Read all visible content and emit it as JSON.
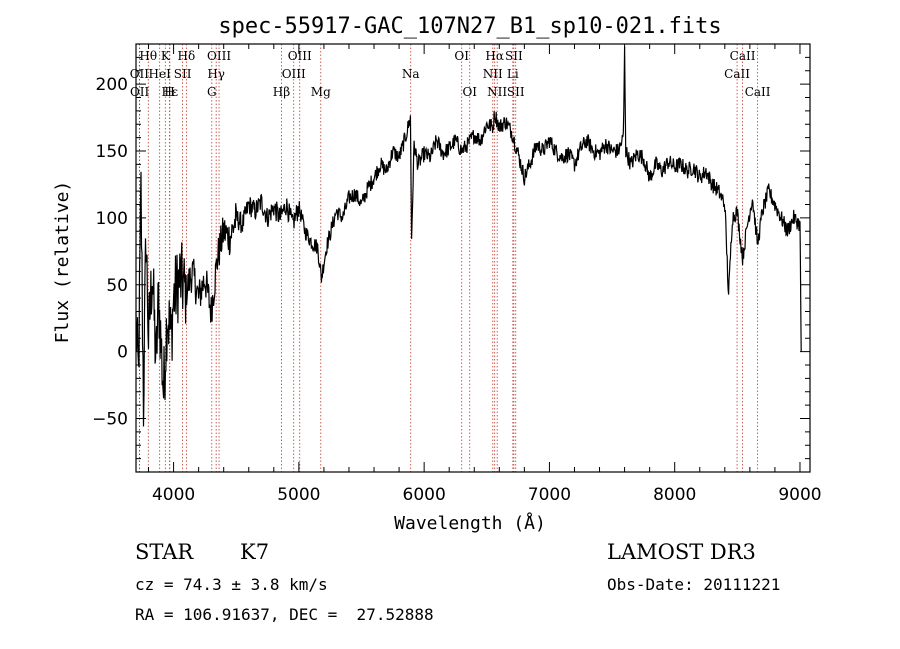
{
  "chart_data": {
    "type": "line",
    "title": "spec-55917-GAC_107N27_B1_sp10-021.fits",
    "xlabel": "Wavelength (Å)",
    "ylabel": "Flux (relative)",
    "xlim": [
      3700,
      9080
    ],
    "ylim": [
      -90,
      230
    ],
    "xticks": [
      4000,
      5000,
      6000,
      7000,
      8000,
      9000
    ],
    "yticks": [
      -50,
      0,
      50,
      100,
      150,
      200
    ],
    "spectrum_anchors": [
      [
        3700,
        20
      ],
      [
        3720,
        -20
      ],
      [
        3740,
        120
      ],
      [
        3760,
        -40
      ],
      [
        3780,
        90
      ],
      [
        3800,
        10
      ],
      [
        3830,
        60
      ],
      [
        3860,
        -10
      ],
      [
        3880,
        40
      ],
      [
        3920,
        -30
      ],
      [
        3950,
        30
      ],
      [
        3980,
        10
      ],
      [
        4000,
        40
      ],
      [
        4050,
        55
      ],
      [
        4100,
        45
      ],
      [
        4150,
        60
      ],
      [
        4200,
        40
      ],
      [
        4250,
        55
      ],
      [
        4300,
        30
      ],
      [
        4350,
        70
      ],
      [
        4400,
        90
      ],
      [
        4450,
        85
      ],
      [
        4500,
        100
      ],
      [
        4550,
        95
      ],
      [
        4600,
        110
      ],
      [
        4650,
        105
      ],
      [
        4700,
        112
      ],
      [
        4750,
        100
      ],
      [
        4800,
        108
      ],
      [
        4850,
        100
      ],
      [
        4900,
        110
      ],
      [
        4950,
        95
      ],
      [
        5000,
        108
      ],
      [
        5050,
        90
      ],
      [
        5100,
        82
      ],
      [
        5150,
        78
      ],
      [
        5180,
        55
      ],
      [
        5220,
        78
      ],
      [
        5300,
        105
      ],
      [
        5350,
        100
      ],
      [
        5400,
        115
      ],
      [
        5450,
        118
      ],
      [
        5500,
        110
      ],
      [
        5550,
        122
      ],
      [
        5600,
        130
      ],
      [
        5650,
        140
      ],
      [
        5700,
        135
      ],
      [
        5750,
        150
      ],
      [
        5800,
        145
      ],
      [
        5850,
        160
      ],
      [
        5890,
        175
      ],
      [
        5900,
        85
      ],
      [
        5920,
        155
      ],
      [
        5950,
        140
      ],
      [
        6000,
        148
      ],
      [
        6050,
        145
      ],
      [
        6100,
        158
      ],
      [
        6150,
        148
      ],
      [
        6200,
        152
      ],
      [
        6250,
        158
      ],
      [
        6300,
        150
      ],
      [
        6350,
        155
      ],
      [
        6400,
        162
      ],
      [
        6450,
        158
      ],
      [
        6500,
        170
      ],
      [
        6550,
        168
      ],
      [
        6563,
        178
      ],
      [
        6600,
        168
      ],
      [
        6650,
        172
      ],
      [
        6700,
        164
      ],
      [
        6750,
        148
      ],
      [
        6800,
        130
      ],
      [
        6850,
        142
      ],
      [
        6900,
        155
      ],
      [
        6950,
        150
      ],
      [
        7000,
        158
      ],
      [
        7050,
        150
      ],
      [
        7100,
        145
      ],
      [
        7150,
        148
      ],
      [
        7200,
        140
      ],
      [
        7250,
        152
      ],
      [
        7300,
        158
      ],
      [
        7350,
        150
      ],
      [
        7400,
        148
      ],
      [
        7450,
        155
      ],
      [
        7500,
        150
      ],
      [
        7550,
        150
      ],
      [
        7590,
        160
      ],
      [
        7600,
        225
      ],
      [
        7610,
        150
      ],
      [
        7650,
        140
      ],
      [
        7700,
        148
      ],
      [
        7750,
        145
      ],
      [
        7800,
        130
      ],
      [
        7850,
        140
      ],
      [
        7900,
        135
      ],
      [
        7950,
        142
      ],
      [
        8000,
        138
      ],
      [
        8050,
        140
      ],
      [
        8100,
        135
      ],
      [
        8150,
        138
      ],
      [
        8200,
        130
      ],
      [
        8250,
        135
      ],
      [
        8300,
        125
      ],
      [
        8350,
        120
      ],
      [
        8400,
        110
      ],
      [
        8430,
        42
      ],
      [
        8460,
        100
      ],
      [
        8498,
        105
      ],
      [
        8542,
        70
      ],
      [
        8580,
        95
      ],
      [
        8620,
        115
      ],
      [
        8662,
        80
      ],
      [
        8700,
        105
      ],
      [
        8750,
        120
      ],
      [
        8800,
        110
      ],
      [
        8850,
        100
      ],
      [
        8900,
        90
      ],
      [
        8950,
        100
      ],
      [
        9000,
        95
      ],
      [
        9010,
        0
      ]
    ],
    "spectral_lines": [
      {
        "label": "Hθ",
        "w": 3798,
        "row": 0
      },
      {
        "label": "K",
        "w": 3934,
        "row": 0
      },
      {
        "label": "Hδ",
        "w": 4102,
        "row": 0
      },
      {
        "label": "OIII",
        "w": 4363,
        "row": 0
      },
      {
        "label": "OIII",
        "w": 5007,
        "row": 0
      },
      {
        "label": "OI",
        "w": 6300,
        "row": 0
      },
      {
        "label": "Hα",
        "w": 6563,
        "row": 0
      },
      {
        "label": "SII",
        "w": 6716,
        "row": 0
      },
      {
        "label": "CaII",
        "w": 8542,
        "row": 0
      },
      {
        "label": "OII",
        "w": 3727,
        "row": 1
      },
      {
        "label": "HeI",
        "w": 3889,
        "row": 1
      },
      {
        "label": "SII",
        "w": 4072,
        "row": 1
      },
      {
        "label": "Hγ",
        "w": 4340,
        "row": 1
      },
      {
        "label": "OIII",
        "w": 4959,
        "row": 1
      },
      {
        "label": "Na",
        "w": 5893,
        "row": 1
      },
      {
        "label": "NII",
        "w": 6548,
        "row": 1
      },
      {
        "label": "Li",
        "w": 6708,
        "row": 1
      },
      {
        "label": "CaII",
        "w": 8498,
        "row": 1
      },
      {
        "label": "OII",
        "w": 3729,
        "row": 2
      },
      {
        "label": "Hε",
        "w": 3970,
        "row": 2
      },
      {
        "label": "H",
        "w": 3968,
        "row": 2
      },
      {
        "label": "G",
        "w": 4305,
        "row": 2
      },
      {
        "label": "Hβ",
        "w": 4861,
        "row": 2
      },
      {
        "label": "Mg",
        "w": 5175,
        "row": 2
      },
      {
        "label": "OI",
        "w": 6364,
        "row": 2
      },
      {
        "label": "NII",
        "w": 6583,
        "row": 2
      },
      {
        "label": "SII",
        "w": 6731,
        "row": 2
      },
      {
        "label": "CaII",
        "w": 8662,
        "row": 2
      }
    ]
  },
  "info": {
    "object_class": "STAR",
    "subclass": "K7",
    "survey": "LAMOST DR3",
    "cz": "cz = 74.3 ± 3.8 km/s",
    "obs_date": "Obs-Date: 20111221",
    "coords": "RA = 106.91637, DEC =  27.52888"
  }
}
